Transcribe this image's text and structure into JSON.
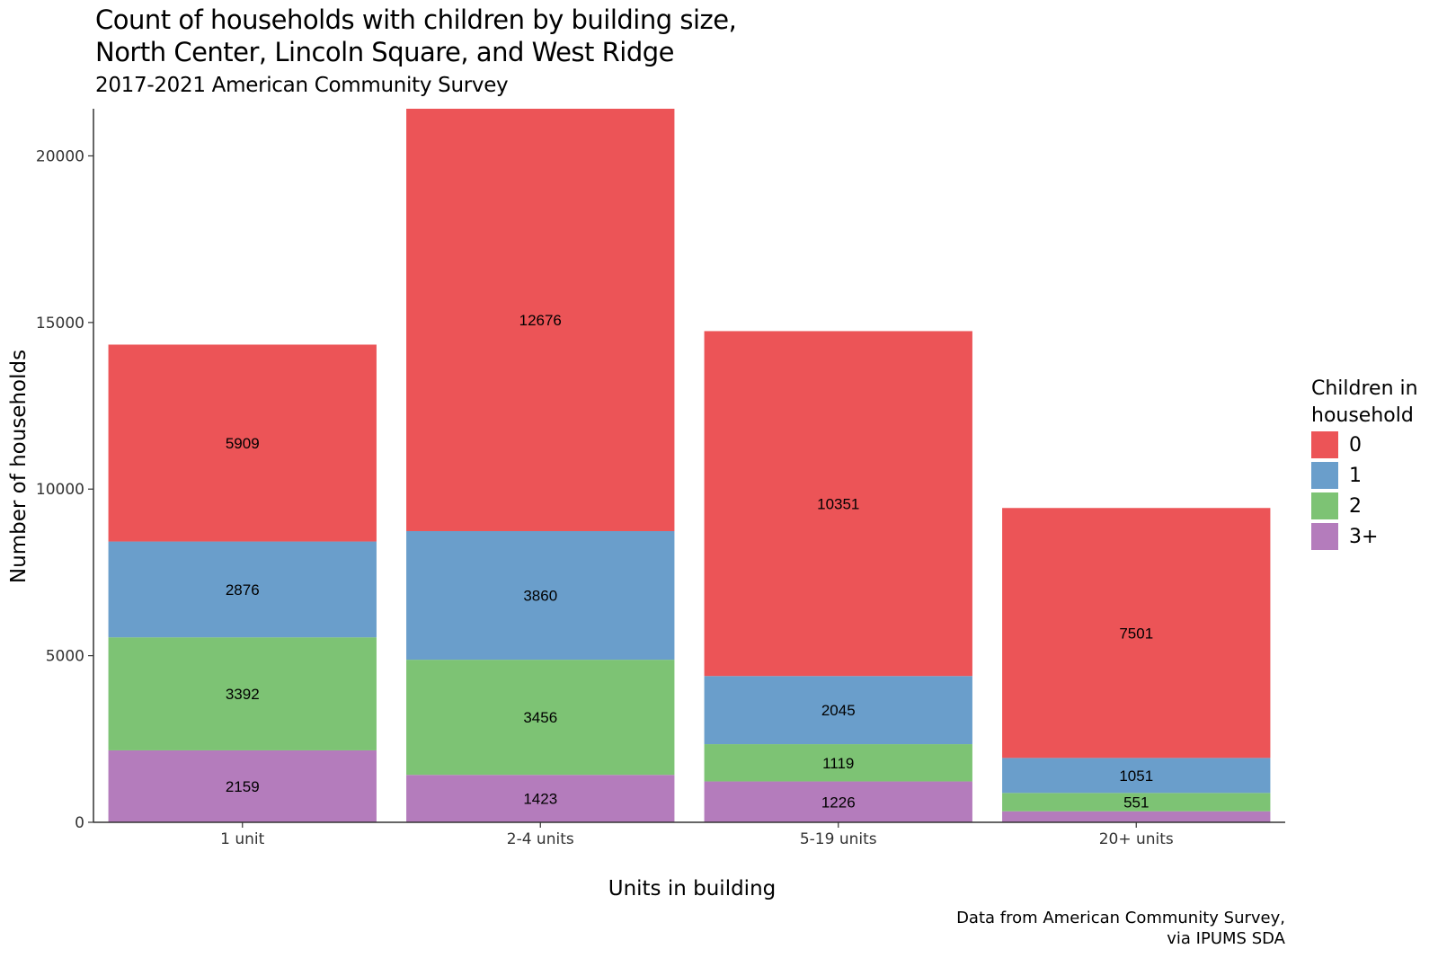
{
  "chart_data": {
    "type": "bar",
    "stacked": true,
    "title_lines": [
      "Count of households with children by building size,",
      "North Center, Lincoln Square, and West Ridge"
    ],
    "subtitle": "2017-2021 American Community Survey",
    "xlabel": "Units in building",
    "ylabel": "Number of households",
    "caption_lines": [
      "Data from American Community Survey,",
      "via IPUMS SDA"
    ],
    "categories": [
      "1 unit",
      "2-4 units",
      "5-19 units",
      "20+ units"
    ],
    "ylim": [
      0,
      21415
    ],
    "yticks": [
      0,
      5000,
      10000,
      15000,
      20000
    ],
    "grid": false,
    "legend_title": "Children in household",
    "legend_title_lines": [
      "Children in",
      "household"
    ],
    "legend_position": "right",
    "series": [
      {
        "name": "3+",
        "color": "#B47CBC",
        "values": [
          2159,
          1423,
          1226,
          330
        ],
        "labels": [
          "2159",
          "1423",
          "1226",
          ""
        ]
      },
      {
        "name": "2",
        "color": "#7DC374",
        "values": [
          3392,
          3456,
          1119,
          551
        ],
        "labels": [
          "3392",
          "3456",
          "1119",
          "551"
        ]
      },
      {
        "name": "1",
        "color": "#6A9ECB",
        "values": [
          2876,
          3860,
          2045,
          1051
        ],
        "labels": [
          "2876",
          "3860",
          "2045",
          "1051"
        ]
      },
      {
        "name": "0",
        "color": "#EC5457",
        "values": [
          5909,
          12676,
          10351,
          7501
        ],
        "labels": [
          "5909",
          "12676",
          "10351",
          "7501"
        ]
      }
    ],
    "legend_order": [
      "0",
      "1",
      "2",
      "3+"
    ]
  }
}
